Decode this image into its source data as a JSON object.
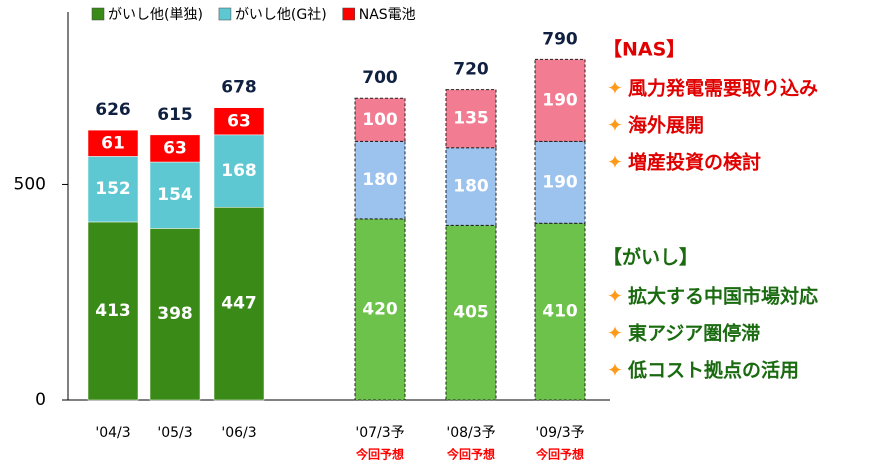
{
  "chart_data": {
    "type": "stacked_bar",
    "categories": [
      "'04/3",
      "'05/3",
      "'06/3",
      "'07/3予",
      "'08/3予",
      "'09/3予"
    ],
    "category_notes": [
      null,
      null,
      null,
      "今回予想",
      "今回予想",
      "今回予想"
    ],
    "series": [
      {
        "name": "がいし他(単独)",
        "color": "#3a8a18",
        "colors": [
          "#3a8a18",
          "#3a8a18",
          "#3a8a18",
          "#6cc24a",
          "#6cc24a",
          "#6cc24a"
        ],
        "values": [
          413,
          398,
          447,
          420,
          405,
          410
        ]
      },
      {
        "name": "がいし他(G社)",
        "color": "#5ec8d2",
        "colors": [
          "#5ec8d2",
          "#5ec8d2",
          "#5ec8d2",
          "#9cc2ee",
          "#9cc2ee",
          "#9cc2ee"
        ],
        "values": [
          152,
          154,
          168,
          180,
          180,
          190
        ]
      },
      {
        "name": "NAS電池",
        "color": "#ff0000",
        "colors": [
          "#ff0000",
          "#ff0000",
          "#ff0000",
          "#f27d93",
          "#f27d93",
          "#f27d93"
        ],
        "values": [
          61,
          63,
          63,
          100,
          135,
          190
        ]
      }
    ],
    "totals": [
      626,
      615,
      678,
      700,
      720,
      790
    ],
    "ylim": [
      0,
      900
    ],
    "yticks": [
      0,
      500
    ],
    "annotations": [
      {
        "heading": "【NAS】",
        "color": "#e00000",
        "items": [
          "風力発電需要取り込み",
          "海外展開",
          "増産投資の検討"
        ]
      },
      {
        "heading": "【がいし】",
        "color": "#1a6a10",
        "items": [
          "拡大する中国市場対応",
          "東アジア圏停滞",
          "低コスト拠点の活用"
        ]
      }
    ]
  }
}
